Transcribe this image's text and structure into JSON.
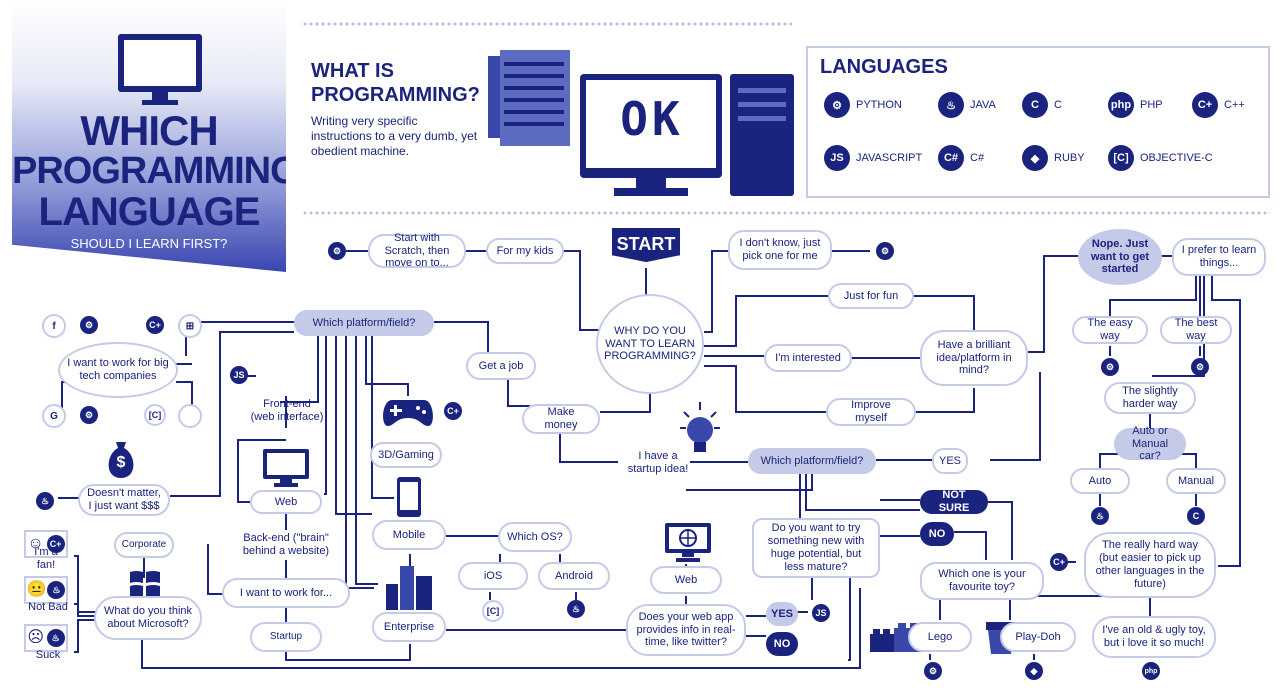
{
  "banner": {
    "line1": "WHICH",
    "line2": "PROGRAMMING",
    "line3": "LANGUAGE",
    "subtitle": "SHOULD I LEARN FIRST?"
  },
  "what": {
    "title1": "WHAT IS",
    "title2": "PROGRAMMING?",
    "description": "Writing very specific instructions to a very dumb, yet obedient machine.",
    "screen_text": "OK"
  },
  "languages": {
    "title": "LANGUAGES",
    "items": [
      {
        "name": "PYTHON",
        "icon": "python-icon"
      },
      {
        "name": "JAVA",
        "icon": "java-icon"
      },
      {
        "name": "C",
        "icon": "c-icon"
      },
      {
        "name": "PHP",
        "icon": "php-icon"
      },
      {
        "name": "C++",
        "icon": "cpp-icon"
      },
      {
        "name": "JAVASCRIPT",
        "icon": "javascript-icon"
      },
      {
        "name": "C#",
        "icon": "csharp-icon"
      },
      {
        "name": "RUBY",
        "icon": "ruby-icon"
      },
      {
        "name": "OBJECTIVE-C",
        "icon": "objective-c-icon"
      }
    ]
  },
  "icons": {
    "python": "⚙",
    "java": "♨",
    "c": "C",
    "php": "php",
    "cpp": "C+",
    "js": "JS",
    "csharp": "C#",
    "ruby": "◆",
    "objc": "[C]",
    "facebook": "f",
    "google": "G",
    "windows": "⊞",
    "apple": "",
    "dollar": "$",
    "gamepad": "🎮",
    "bulb": "💡",
    "globe": "◍",
    "lego": "▇",
    "happy": "☺",
    "neutral": "😐",
    "sad": "☹"
  },
  "nodes": {
    "start": "START",
    "why": "WHY DO YOU WANT TO LEARN PROGRAMMING?",
    "scratch": "Start with Scratch, then move on to...",
    "kids": "For my kids",
    "dont_know": "I don't know, just pick one for me",
    "just_fun": "Just for fun",
    "interested": "I'm interested",
    "improve": "Improve myself",
    "brilliant": "Have a brilliant idea/platform in mind?",
    "nope": "Nope. Just want to get started",
    "prefer": "I prefer to learn things...",
    "easy": "The easy way",
    "best": "The best way",
    "slightly": "The slightly harder way",
    "auto_manual": "Auto or Manual car?",
    "auto": "Auto",
    "manual": "Manual",
    "hard": "The really hard way (but easier to pick up other languages in the future)",
    "platform1": "Which platform/field?",
    "big_tech": "I want to work for big tech companies",
    "doesnt_matter": "Doesn't matter, I just want $$$",
    "get_job": "Get a job",
    "make_money": "Make money",
    "startup_idea": "I have a startup idea!",
    "platform2": "Which platform/field?",
    "yes1": "YES",
    "frontend": "Front-end (web interface)",
    "web1": "Web",
    "backend": "Back-end (\"brain\" behind a website)",
    "work_for": "I want to work for...",
    "corporate": "Corporate",
    "startup": "Startup",
    "ms_q": "What do you think about Microsoft?",
    "fan": "I'm a fan!",
    "not_bad": "Not Bad",
    "suck": "Suck",
    "gaming": "3D/Gaming",
    "mobile": "Mobile",
    "which_os": "Which OS?",
    "ios": "iOS",
    "android": "Android",
    "enterprise": "Enterprise",
    "web2": "Web",
    "realtime": "Does your web app provides info in real-time, like twitter?",
    "yes2": "YES",
    "no2": "NO",
    "try_new": "Do you want to try something new with huge potential, but less mature?",
    "not_sure": "NOT SURE",
    "no3": "NO",
    "toy": "Which one is your favourite toy?",
    "lego": "Lego",
    "playdoh": "Play-Doh",
    "old_toy": "I've an old & ugly toy, but i love it so much!"
  }
}
